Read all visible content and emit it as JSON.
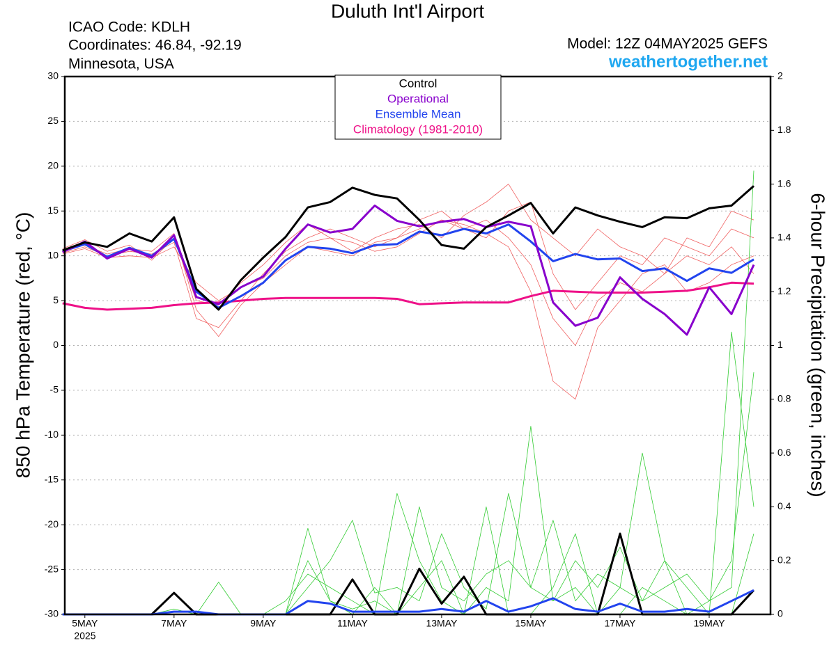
{
  "chart_data": {
    "type": "line",
    "title": "Duluth Int'l Airport",
    "station_lines": [
      "ICAO Code: KDLH",
      "Coordinates: 46.84, -92.19",
      "Minnesota, USA"
    ],
    "model": "Model: 12Z 04MAY2025 GEFS",
    "site": "weathertogether.net",
    "y_label": "850 hPa Temperature (red, °C)",
    "y2_label": "6-hour Precipitation (green, inches)",
    "x_year_label": "2025",
    "xlim": [
      -0.45,
      15.375
    ],
    "xticks": [
      {
        "value": 0,
        "label": "5MAY"
      },
      {
        "value": 2,
        "label": "7MAY"
      },
      {
        "value": 4,
        "label": "9MAY"
      },
      {
        "value": 6,
        "label": "11MAY"
      },
      {
        "value": 8,
        "label": "13MAY"
      },
      {
        "value": 10,
        "label": "15MAY"
      },
      {
        "value": 12,
        "label": "17MAY"
      },
      {
        "value": 14,
        "label": "19MAY"
      }
    ],
    "ylim": [
      -30,
      30
    ],
    "yticks": [
      30,
      25,
      20,
      15,
      10,
      5,
      0,
      -5,
      -10,
      -15,
      -20,
      -25,
      -30
    ],
    "y2lim": [
      0,
      2
    ],
    "y2ticks": [
      2,
      1.8,
      1.6,
      1.4,
      1.2,
      1,
      0.8,
      0.6,
      0.4,
      0.2,
      0
    ],
    "grid": true,
    "legend": "top",
    "x": [
      -0.5,
      0,
      0.5,
      1,
      1.5,
      2,
      2.5,
      3,
      3.5,
      4,
      4.5,
      5,
      5.5,
      6,
      6.5,
      7,
      7.5,
      8,
      8.5,
      9,
      9.5,
      10,
      10.5,
      11,
      11.5,
      12,
      12.5,
      13,
      13.5,
      14,
      14.5,
      15
    ],
    "series": [
      {
        "color": "#f06060",
        "values": [
          10.3,
          11,
          10,
          10.5,
          10.2,
          11.5,
          3,
          2,
          5,
          8,
          10.5,
          12,
          13,
          12,
          11,
          12,
          14,
          15,
          13,
          12,
          15,
          16,
          8,
          4,
          7,
          10,
          9,
          12,
          11,
          10,
          13,
          12
        ]
      },
      {
        "color": "#f06060",
        "values": [
          10.8,
          11.8,
          10.5,
          11.2,
          9.5,
          12,
          5,
          4.5,
          7,
          9,
          11.5,
          13.5,
          12,
          11.5,
          10.5,
          11,
          12.5,
          14,
          13,
          14,
          12,
          9,
          3,
          0,
          5,
          7,
          6,
          8,
          10,
          9,
          11,
          8
        ]
      },
      {
        "color": "#f06060",
        "values": [
          10.2,
          10.8,
          9.8,
          10,
          9.8,
          11,
          7,
          5,
          6.5,
          7.5,
          10,
          11.5,
          12,
          10.5,
          12,
          13,
          13.5,
          12,
          14.5,
          16,
          18,
          14,
          12,
          10,
          13,
          11,
          10,
          8,
          12,
          11,
          15,
          14
        ]
      },
      {
        "color": "#f06060",
        "values": [
          10.6,
          11.2,
          10.2,
          10.8,
          10.5,
          12.5,
          4,
          1,
          4.5,
          7,
          9,
          11,
          10.5,
          10,
          11.5,
          12,
          13,
          14,
          13.5,
          12.5,
          11,
          6,
          -4,
          -6,
          2,
          5,
          8,
          9,
          6,
          7,
          9,
          10
        ]
      },
      {
        "color": "#33cc33",
        "axis": "y2",
        "values": [
          0,
          0,
          0,
          0,
          0,
          0,
          0,
          0.12,
          0,
          0,
          0,
          0.32,
          0.05,
          0,
          0.1,
          0,
          0.1,
          0.2,
          0,
          0.4,
          0,
          0,
          0.1,
          0.3,
          0,
          0,
          0.1,
          0.05,
          0,
          0,
          0,
          0.3
        ]
      },
      {
        "color": "#33cc33",
        "axis": "y2",
        "values": [
          0,
          0,
          0,
          0,
          0,
          0.02,
          0,
          0,
          0,
          0,
          0.05,
          0.15,
          0.1,
          0.05,
          0,
          0.45,
          0.2,
          0.05,
          0,
          0.1,
          0.05,
          0.7,
          0.05,
          0.1,
          0,
          0.1,
          0.6,
          0.2,
          0,
          0.05,
          0.2,
          0.9
        ]
      },
      {
        "color": "#33cc33",
        "axis": "y2",
        "values": [
          0,
          0,
          0,
          0,
          0,
          0,
          0,
          0,
          0,
          0,
          0,
          0.1,
          0.2,
          0.35,
          0.08,
          0.1,
          0.05,
          0.3,
          0.1,
          0.02,
          0.45,
          0.1,
          0.35,
          0.05,
          0.15,
          0.1,
          0.05,
          0.2,
          0.1,
          0,
          1.05,
          0.4
        ]
      },
      {
        "color": "#33cc33",
        "axis": "y2",
        "values": [
          0,
          0,
          0,
          0,
          0,
          0,
          0,
          0,
          0,
          0,
          0,
          0.2,
          0.05,
          0.02,
          0.05,
          0,
          0.4,
          0.1,
          0.05,
          0.15,
          0.2,
          0.1,
          0.05,
          0.2,
          0.1,
          0.25,
          0.05,
          0.1,
          0.15,
          0.05,
          0.1,
          1.65
        ]
      },
      {
        "color": "#000000",
        "axis": "y2",
        "width": 3,
        "values": [
          0,
          0,
          0,
          0,
          0,
          0.08,
          0,
          0,
          0,
          0,
          0,
          0,
          0,
          0.13,
          0,
          0,
          0.17,
          0.04,
          0.14,
          0,
          0,
          0,
          0,
          0,
          0,
          0.3,
          0,
          0,
          0,
          0,
          0,
          0.09
        ]
      },
      {
        "color": "#2244ee",
        "axis": "y2",
        "width": 3,
        "values": [
          0,
          0,
          0,
          0,
          0,
          0.01,
          0.01,
          0,
          0,
          0,
          0,
          0.05,
          0.04,
          0.01,
          0.01,
          0.01,
          0.01,
          0.02,
          0.01,
          0.05,
          0.01,
          0.03,
          0.06,
          0.02,
          0.01,
          0.04,
          0.01,
          0.01,
          0.02,
          0.01,
          0.05,
          0.09
        ]
      },
      {
        "name": "Climatology (1981-2010)",
        "color": "#ee1188",
        "width": 3,
        "values": [
          4.7,
          4.2,
          4.0,
          4.1,
          4.2,
          4.5,
          4.7,
          4.8,
          5.0,
          5.2,
          5.3,
          5.3,
          5.3,
          5.3,
          5.3,
          5.2,
          4.6,
          4.7,
          4.8,
          4.8,
          4.8,
          5.5,
          6.1,
          6.0,
          5.9,
          5.9,
          5.9,
          6.0,
          6.1,
          6.5,
          7.0,
          6.9
        ]
      },
      {
        "name": "Ensemble Mean",
        "color": "#2244ee",
        "width": 3,
        "values": [
          10.5,
          11.3,
          9.9,
          10.9,
          10.0,
          11.9,
          6.0,
          4.2,
          5.5,
          7.0,
          9.5,
          11.0,
          10.8,
          10.3,
          11.2,
          11.3,
          12.7,
          12.3,
          13.0,
          12.5,
          13.5,
          11.6,
          9.4,
          10.2,
          9.6,
          9.7,
          8.3,
          8.6,
          7.2,
          8.6,
          8.1,
          9.6
        ]
      },
      {
        "name": "Operational",
        "color": "#8800cc",
        "width": 3,
        "values": [
          10.4,
          11.6,
          9.7,
          10.8,
          9.8,
          12.3,
          5.4,
          4.6,
          6.5,
          7.7,
          10.8,
          13.5,
          12.6,
          13.0,
          15.6,
          13.9,
          13.3,
          13.8,
          14.1,
          13.2,
          13.8,
          13.3,
          4.8,
          2.2,
          3.1,
          7.6,
          5.2,
          3.5,
          1.2,
          6.5,
          3.5,
          9.0
        ]
      },
      {
        "name": "Control",
        "color": "#000000",
        "width": 3,
        "values": [
          10.6,
          11.5,
          11.0,
          12.5,
          11.6,
          14.3,
          6.3,
          4.0,
          7.3,
          9.8,
          12.1,
          15.4,
          16.0,
          17.6,
          16.8,
          16.4,
          14.0,
          11.2,
          10.8,
          13.2,
          14.5,
          15.9,
          12.5,
          15.4,
          14.5,
          13.8,
          13.2,
          14.3,
          14.2,
          15.3,
          15.6,
          17.8
        ]
      }
    ]
  }
}
